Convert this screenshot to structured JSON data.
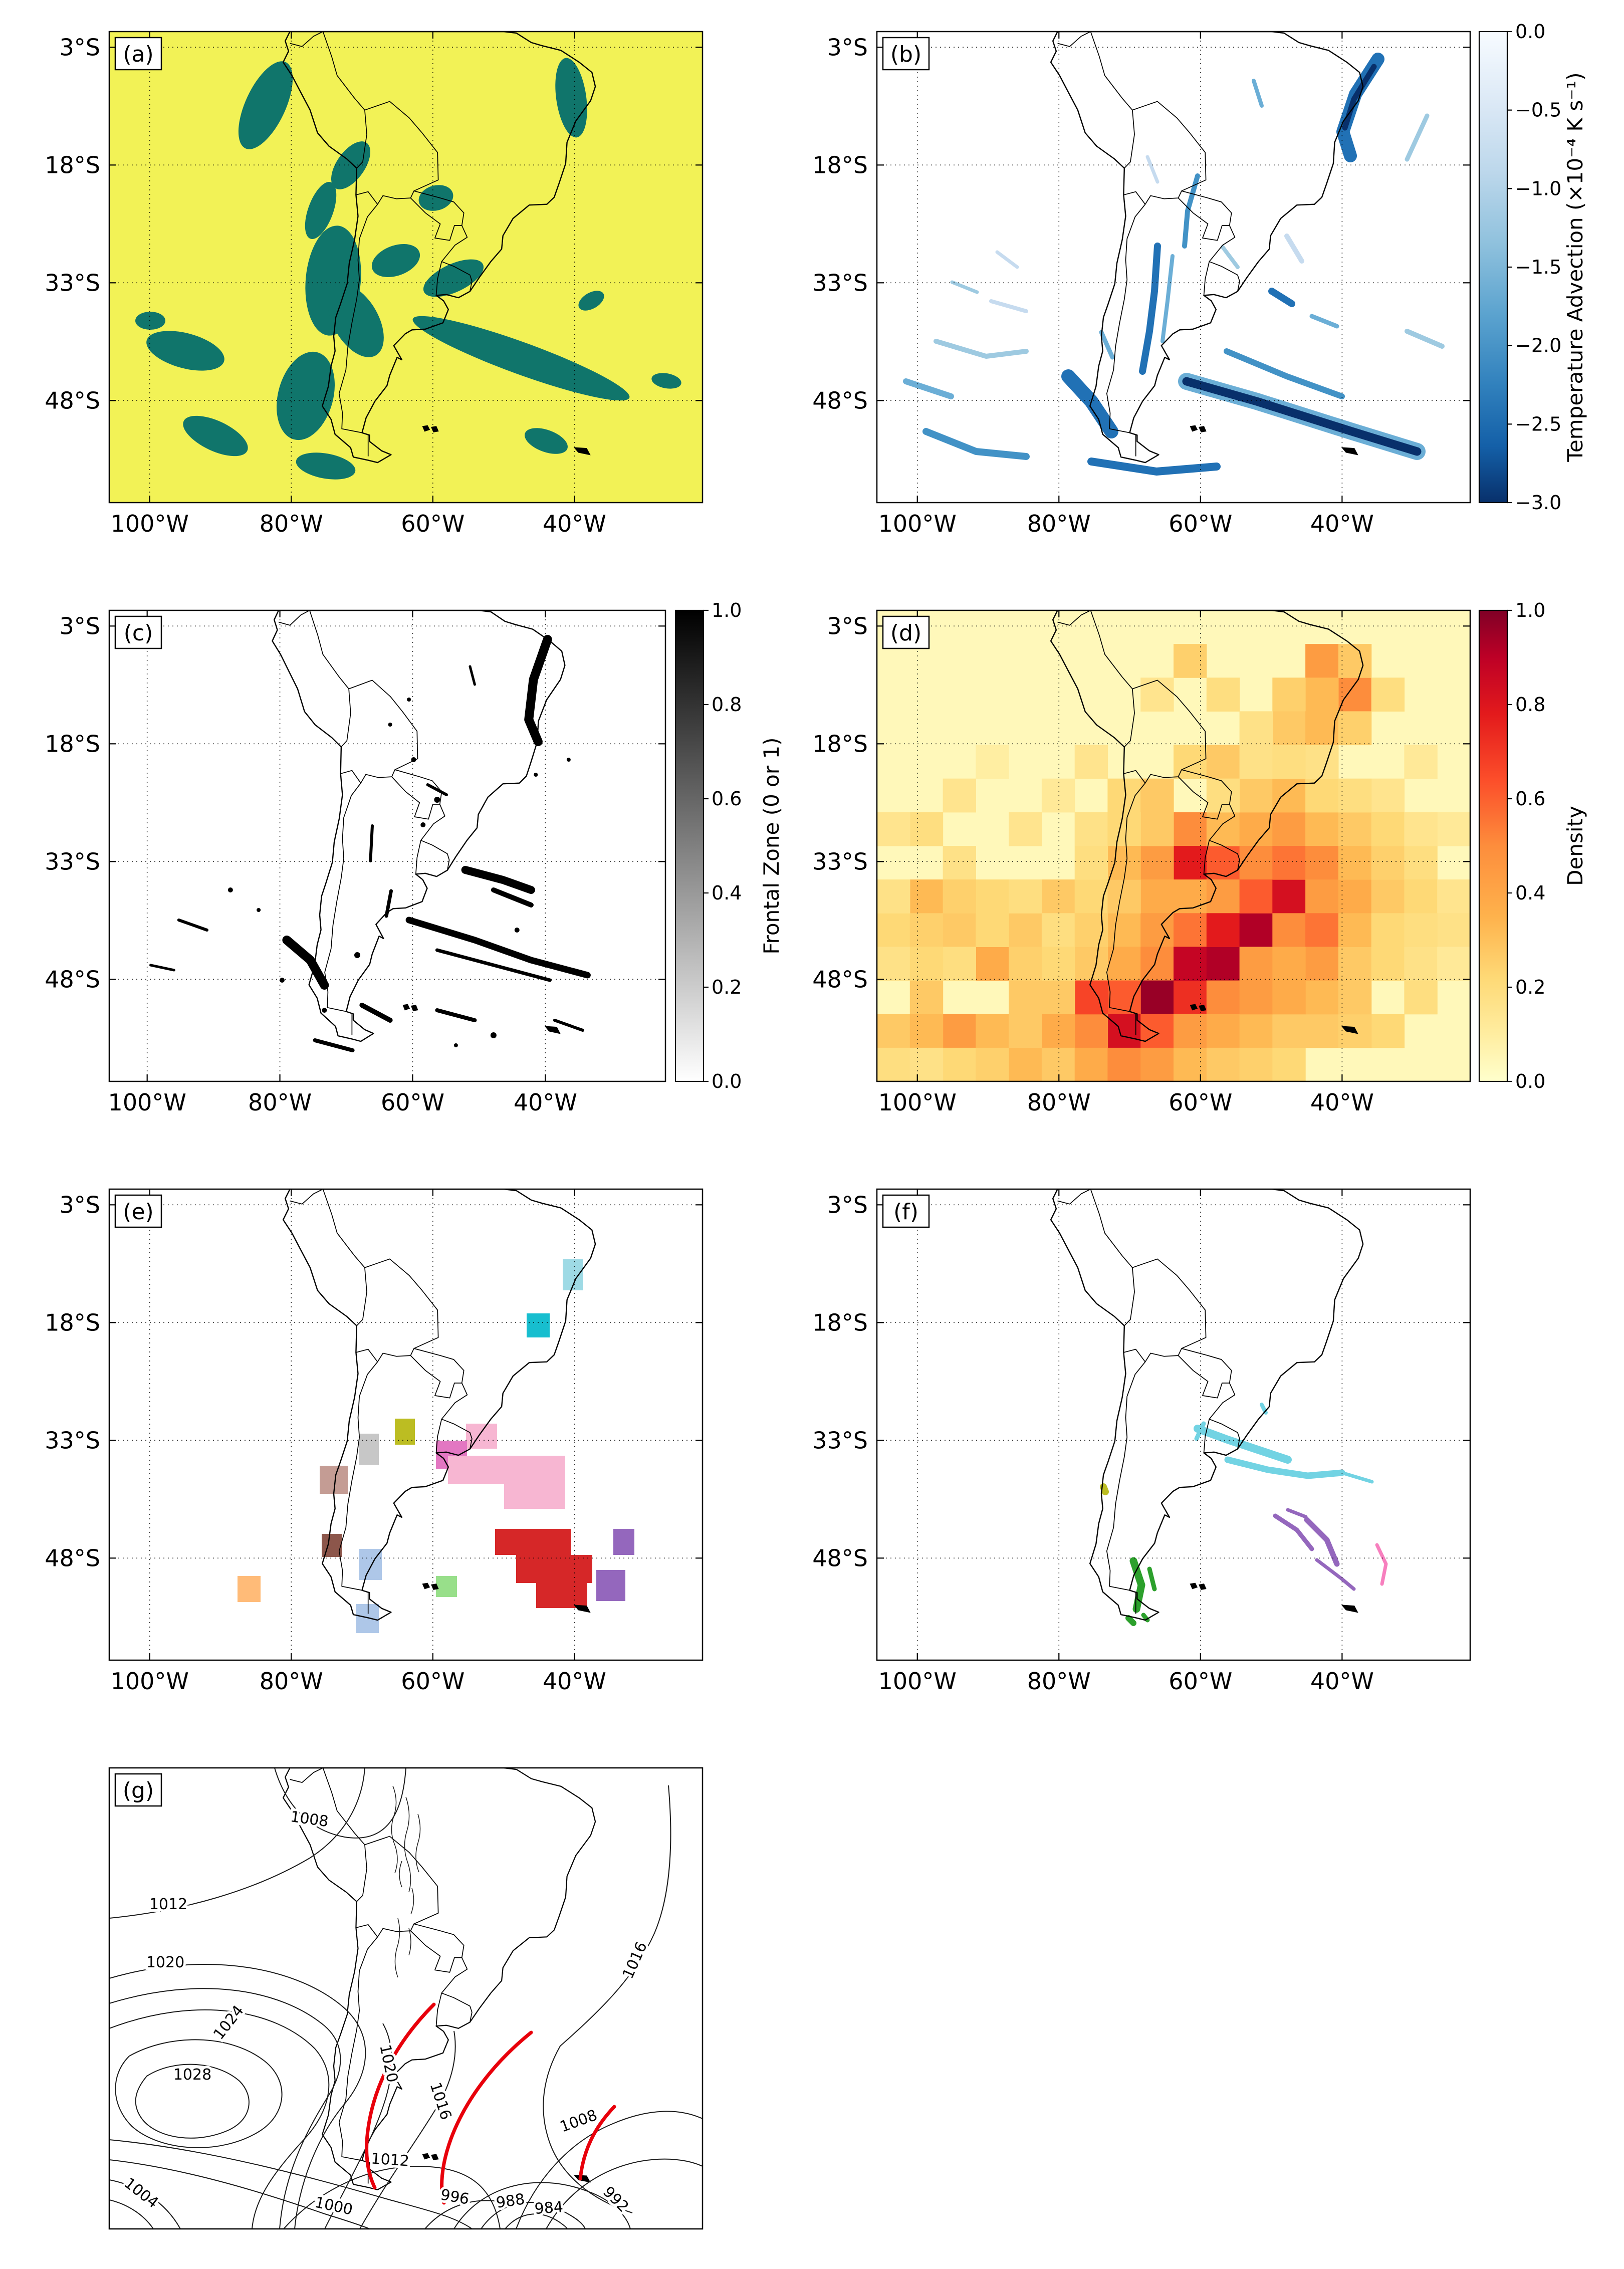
{
  "figure": {
    "axes": {
      "lat_ticks": [
        "3°S",
        "18°S",
        "33°S",
        "48°S"
      ],
      "lon_ticks": [
        "100°W",
        "80°W",
        "60°W",
        "40°W"
      ]
    },
    "panels": [
      {
        "id": "a",
        "label": "(a)"
      },
      {
        "id": "b",
        "label": "(b)"
      },
      {
        "id": "c",
        "label": "(c)"
      },
      {
        "id": "d",
        "label": "(d)"
      },
      {
        "id": "e",
        "label": "(e)"
      },
      {
        "id": "f",
        "label": "(f)"
      },
      {
        "id": "g",
        "label": "(g)"
      }
    ],
    "colorbars": {
      "b": {
        "title": "Temperature Advection (×10⁻⁴ K s⁻¹)",
        "ticks": [
          "0.0",
          "−0.5",
          "−1.0",
          "−1.5",
          "−2.0",
          "−2.5",
          "−3.0"
        ]
      },
      "c": {
        "title": "Frontal Zone (0 or 1)",
        "ticks": [
          "1.0",
          "0.8",
          "0.6",
          "0.4",
          "0.2",
          "0.0"
        ]
      },
      "d": {
        "title": "Density",
        "ticks": [
          "1.0",
          "0.8",
          "0.6",
          "0.4",
          "0.2",
          "0.0"
        ]
      }
    },
    "contour_labels_g": [
      "1008",
      "1012",
      "1020",
      "1024",
      "1028",
      "1004",
      "1020",
      "1016",
      "1012",
      "1000",
      "996",
      "988",
      "984",
      "992",
      "1008",
      "1016"
    ],
    "colors": {
      "panel_a_bg": "#f2f256",
      "panel_a_blob": "#10756b",
      "blues": [
        "#c6dbef",
        "#9ecae1",
        "#6baed6",
        "#4292c6",
        "#2171b5",
        "#08519c",
        "#08306b"
      ],
      "ylorrd": [
        "#ffffcc",
        "#ffeda0",
        "#fed976",
        "#feb24c",
        "#fd8d3c",
        "#fc4e2a",
        "#e31a1c",
        "#bd0026",
        "#800026"
      ],
      "front_red": "#e8000b",
      "cluster_e": [
        "#9edae5",
        "#17becf",
        "#bcbd22",
        "#f7b6d2",
        "#e377c2",
        "#c7c7c7",
        "#c49c94",
        "#8c564b",
        "#d62728",
        "#9467bd",
        "#98df8a",
        "#aec7e8",
        "#ffbb78"
      ],
      "cluster_f": [
        "#72d3e3",
        "#bcbd22",
        "#2ca02c",
        "#9467bd",
        "#f77fbe"
      ]
    }
  }
}
